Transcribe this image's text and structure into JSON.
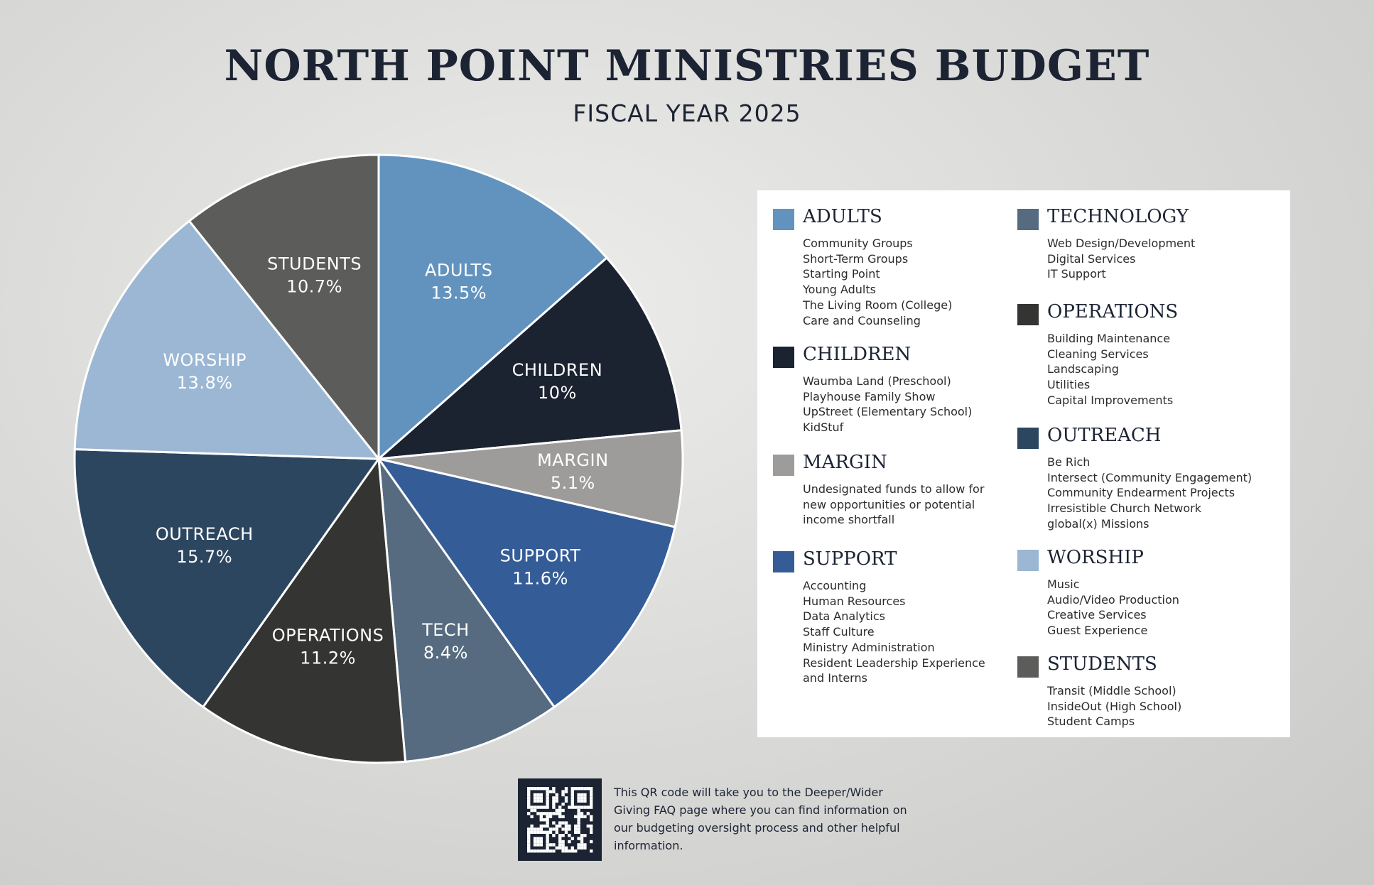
{
  "title": "NORTH POINT MINISTRIES BUDGET",
  "subtitle": "FISCAL YEAR 2025",
  "chart_data": {
    "type": "pie",
    "title": "NORTH POINT MINISTRIES BUDGET",
    "subtitle": "FISCAL YEAR 2025",
    "slices": [
      {
        "label": "ADULTS",
        "value": 13.5,
        "display": "13.5%",
        "color": "#6293bf"
      },
      {
        "label": "CHILDREN",
        "value": 10,
        "display": "10%",
        "color": "#1b2230"
      },
      {
        "label": "MARGIN",
        "value": 5.1,
        "display": "5.1%",
        "color": "#9d9c9a"
      },
      {
        "label": "SUPPORT",
        "value": 11.6,
        "display": "11.6%",
        "color": "#345c97"
      },
      {
        "label": "TECH",
        "value": 8.4,
        "display": "8.4%",
        "color": "#566b80"
      },
      {
        "label": "OPERATIONS",
        "value": 11.2,
        "display": "11.2%",
        "color": "#343432"
      },
      {
        "label": "OUTREACH",
        "value": 15.7,
        "display": "15.7%",
        "color": "#2d4660"
      },
      {
        "label": "WORSHIP",
        "value": 13.8,
        "display": "13.8%",
        "color": "#9bb7d3"
      },
      {
        "label": "STUDENTS",
        "value": 10.7,
        "display": "10.7%",
        "color": "#5c5c5a"
      }
    ]
  },
  "legend": {
    "left": [
      {
        "name": "ADULTS",
        "color": "#6293bf",
        "items": [
          "Community Groups",
          "Short-Term Groups",
          "Starting Point",
          "Young Adults",
          "The Living Room (College)",
          "Care and Counseling"
        ]
      },
      {
        "name": "CHILDREN",
        "color": "#1b2230",
        "items": [
          "Waumba Land (Preschool)",
          "Playhouse Family Show",
          "UpStreet (Elementary School)",
          "KidStuf"
        ]
      },
      {
        "name": "MARGIN",
        "color": "#9d9c9a",
        "description": "Undesignated funds to allow for new opportunities or potential income shortfall"
      },
      {
        "name": "SUPPORT",
        "color": "#345c97",
        "items": [
          "Accounting",
          "Human Resources",
          "Data Analytics",
          "Staff Culture",
          "Ministry Administration",
          "Resident Leadership Experience",
          "and Interns"
        ]
      }
    ],
    "right": [
      {
        "name": "TECHNOLOGY",
        "color": "#566b80",
        "items": [
          "Web Design/Development",
          "Digital Services",
          "IT Support"
        ]
      },
      {
        "name": "OPERATIONS",
        "color": "#343432",
        "items": [
          "Building Maintenance",
          "Cleaning Services",
          "Landscaping",
          "Utilities",
          "Capital Improvements"
        ]
      },
      {
        "name": "OUTREACH",
        "color": "#2d4660",
        "items": [
          "Be Rich",
          "Intersect (Community Engagement)",
          "Community Endearment Projects",
          "Irresistible Church Network",
          "global(x) Missions"
        ]
      },
      {
        "name": "WORSHIP",
        "color": "#9bb7d3",
        "items": [
          "Music",
          "Audio/Video Production",
          "Creative Services",
          "Guest Experience"
        ]
      },
      {
        "name": "STUDENTS",
        "color": "#5c5c5a",
        "items": [
          "Transit (Middle School)",
          "InsideOut (High School)",
          "Student Camps"
        ]
      }
    ]
  },
  "qr": {
    "text": "This QR code will take you to the Deeper/Wider Giving FAQ page where you can find information on our budgeting oversight process and other helpful information."
  }
}
